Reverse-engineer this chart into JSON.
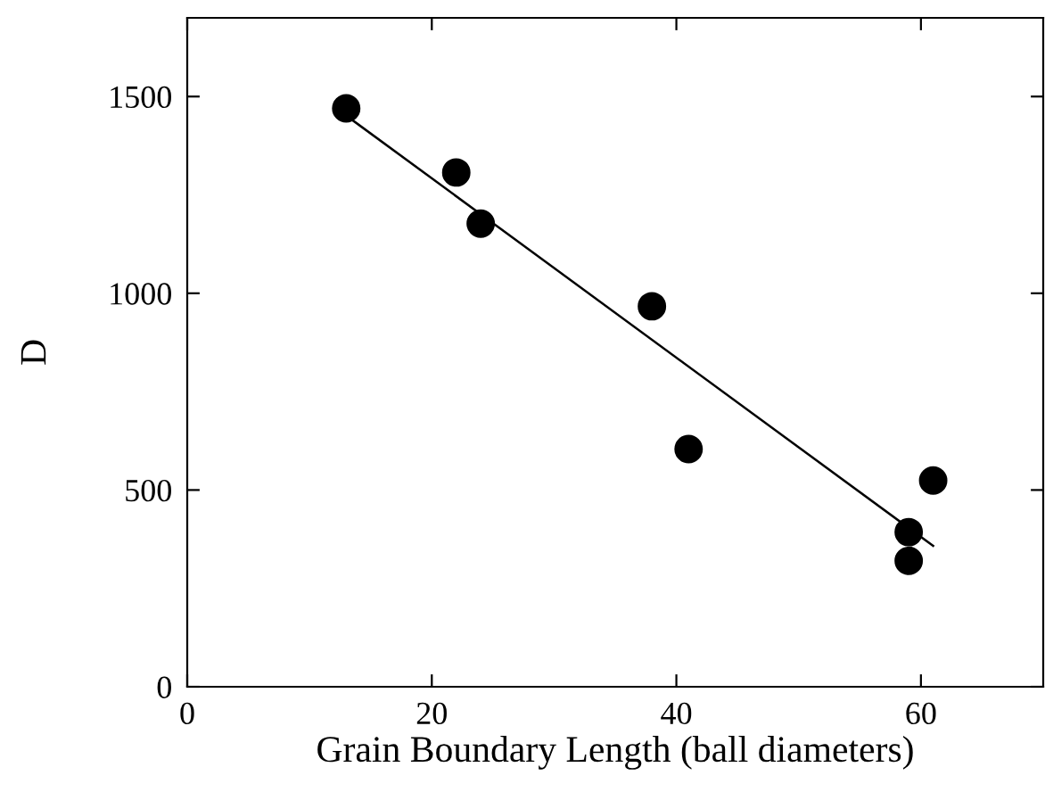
{
  "chart_data": {
    "type": "scatter",
    "xlabel": "Grain Boundary Length (ball diameters)",
    "ylabel": "D",
    "xlim": [
      0,
      70
    ],
    "ylim": [
      0,
      1700
    ],
    "xticks": [
      0,
      20,
      40,
      60
    ],
    "yticks": [
      0,
      500,
      1000,
      1500
    ],
    "grid": false,
    "legend": false,
    "series": [
      {
        "color": "#000000",
        "marker": "circle",
        "x": [
          13,
          22,
          24,
          38,
          41,
          59,
          59,
          61
        ],
        "values": [
          1470,
          1307,
          1177,
          967,
          604,
          393,
          320,
          524
        ]
      },
      {
        "type": "line",
        "color": "#000000",
        "marker": "none",
        "line_style": "solid",
        "x": [
          13.2,
          61
        ],
        "values": [
          1447,
          358
        ]
      }
    ]
  }
}
